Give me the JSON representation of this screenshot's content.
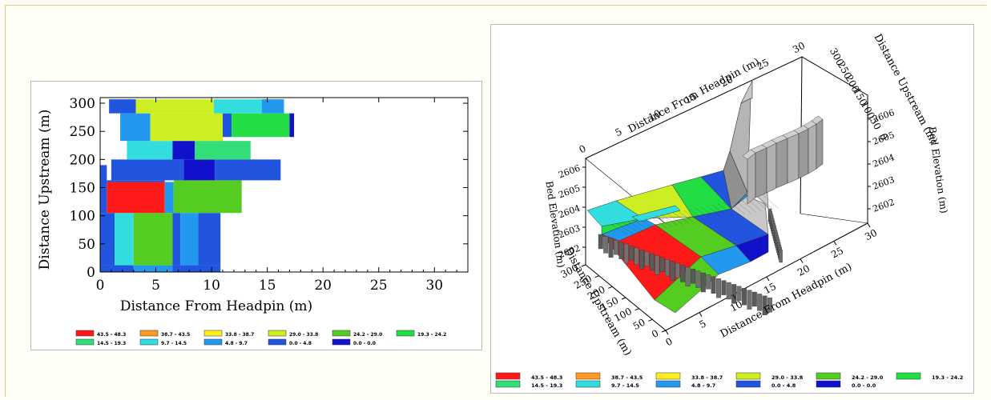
{
  "legend": [
    {
      "label": "43.5 - 48.3",
      "color": "#ff1a1a"
    },
    {
      "label": "38.7 - 43.5",
      "color": "#ff9922"
    },
    {
      "label": "33.8 - 38.7",
      "color": "#ffee22"
    },
    {
      "label": "29.0 - 33.8",
      "color": "#ccee22"
    },
    {
      "label": "24.2 - 29.0",
      "color": "#55cc22"
    },
    {
      "label": "19.3 - 24.2",
      "color": "#22dd44"
    },
    {
      "label": "14.5 - 19.3",
      "color": "#33dd77"
    },
    {
      "label": "9.7 - 14.5",
      "color": "#33dddd"
    },
    {
      "label": "4.8 - 9.7",
      "color": "#2299ee"
    },
    {
      "label": "0.0 - 4.8",
      "color": "#2255dd"
    },
    {
      "label": "0.0 - 0.0",
      "color": "#1111cc"
    }
  ],
  "chart_data": [
    {
      "type": "heatmap",
      "view": "2D",
      "xlabel": "Distance From Headpin (m)",
      "ylabel": "Distance Upstream (m)",
      "xlim": [
        0,
        33
      ],
      "ylim": [
        0,
        310
      ],
      "xticks": [
        0,
        5,
        10,
        15,
        20,
        25,
        30
      ],
      "yticks": [
        0,
        50,
        100,
        150,
        200,
        250,
        300
      ],
      "grid": false,
      "legend_position": "bottom",
      "cells": [
        {
          "x0": 0,
          "x1": 3,
          "y0": 0,
          "y1": 12,
          "c": 9
        },
        {
          "x0": 3,
          "x1": 6.5,
          "y0": 0,
          "y1": 12,
          "c": 8
        },
        {
          "x0": 6.5,
          "x1": 10.8,
          "y0": 0,
          "y1": 12,
          "c": 9
        },
        {
          "x0": 0,
          "x1": 1.3,
          "y0": 12,
          "y1": 105,
          "c": 9
        },
        {
          "x0": 1.3,
          "x1": 3,
          "y0": 12,
          "y1": 105,
          "c": 7
        },
        {
          "x0": 3,
          "x1": 6.5,
          "y0": 12,
          "y1": 105,
          "c": 4
        },
        {
          "x0": 6.5,
          "x1": 7.2,
          "y0": 12,
          "y1": 105,
          "c": 9
        },
        {
          "x0": 7.2,
          "x1": 8.8,
          "y0": 12,
          "y1": 105,
          "c": 8
        },
        {
          "x0": 8.8,
          "x1": 10.8,
          "y0": 12,
          "y1": 105,
          "c": 9
        },
        {
          "x0": 0,
          "x1": 0.6,
          "y0": 105,
          "y1": 190,
          "c": 9
        },
        {
          "x0": 0.6,
          "x1": 5.8,
          "y0": 105,
          "y1": 160,
          "c": 0
        },
        {
          "x0": 0.6,
          "x1": 5.8,
          "y0": 160,
          "y1": 163,
          "c": 9
        },
        {
          "x0": 5.8,
          "x1": 6.6,
          "y0": 105,
          "y1": 160,
          "c": 8
        },
        {
          "x0": 6.6,
          "x1": 12.7,
          "y0": 105,
          "y1": 163,
          "c": 4
        },
        {
          "x0": 1,
          "x1": 7.5,
          "y0": 163,
          "y1": 200,
          "c": 9
        },
        {
          "x0": 7.5,
          "x1": 10.3,
          "y0": 163,
          "y1": 200,
          "c": 10
        },
        {
          "x0": 10.3,
          "x1": 16.2,
          "y0": 163,
          "y1": 200,
          "c": 9
        },
        {
          "x0": 2.4,
          "x1": 6.5,
          "y0": 200,
          "y1": 233,
          "c": 7
        },
        {
          "x0": 6.5,
          "x1": 8.5,
          "y0": 200,
          "y1": 233,
          "c": 10
        },
        {
          "x0": 8.5,
          "x1": 13.5,
          "y0": 200,
          "y1": 233,
          "c": 6
        },
        {
          "x0": 1.8,
          "x1": 4.5,
          "y0": 233,
          "y1": 282,
          "c": 8
        },
        {
          "x0": 4.5,
          "x1": 11,
          "y0": 233,
          "y1": 282,
          "c": 3
        },
        {
          "x0": 11,
          "x1": 11.8,
          "y0": 240,
          "y1": 282,
          "c": 9
        },
        {
          "x0": 11.8,
          "x1": 17,
          "y0": 240,
          "y1": 282,
          "c": 5
        },
        {
          "x0": 17,
          "x1": 17.4,
          "y0": 240,
          "y1": 282,
          "c": 10
        },
        {
          "x0": 0.8,
          "x1": 3.2,
          "y0": 282,
          "y1": 307,
          "c": 9
        },
        {
          "x0": 3.2,
          "x1": 10.2,
          "y0": 282,
          "y1": 307,
          "c": 3
        },
        {
          "x0": 10.2,
          "x1": 14.5,
          "y0": 282,
          "y1": 307,
          "c": 7
        },
        {
          "x0": 14.5,
          "x1": 16.5,
          "y0": 282,
          "y1": 307,
          "c": 8
        }
      ]
    },
    {
      "type": "surface3d",
      "view": "3D perspective",
      "xlabel": "Distance From Headpin (m)",
      "ylabel": "Distance Upstream (m)",
      "zlabel": "Bed Elevation (m)",
      "xlim": [
        0,
        30
      ],
      "ylim": [
        0,
        300
      ],
      "zlim": [
        2602,
        2606
      ],
      "xticks_front": [
        0,
        5,
        10,
        15,
        20,
        25,
        30
      ],
      "xticks_top": [
        0,
        5,
        10,
        15,
        20,
        25,
        30
      ],
      "yticks_front": [
        0,
        50,
        100,
        150,
        200,
        250,
        300
      ],
      "yticks_back": [
        0,
        50,
        100,
        150,
        200,
        250,
        300
      ],
      "zticks_left": [
        2602,
        2603,
        2604,
        2605,
        2606
      ],
      "zticks_right": [
        2602,
        2603,
        2604,
        2605,
        2606
      ],
      "legend_position": "bottom"
    }
  ]
}
